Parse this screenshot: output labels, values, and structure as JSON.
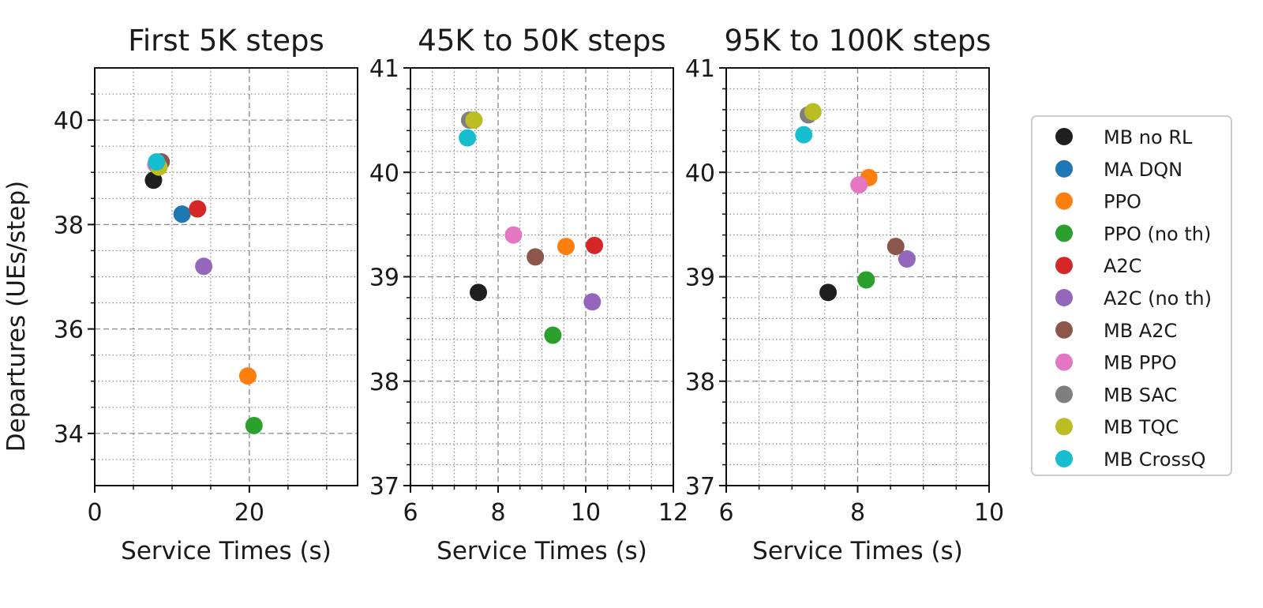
{
  "chart_data": [
    {
      "type": "scatter",
      "title": "First 5K steps",
      "xlabel": "Service Times (s)",
      "ylabel": "Departures (UEs/step)",
      "xlim": [
        0,
        34
      ],
      "ylim": [
        33,
        41
      ],
      "xticks": [
        0,
        20
      ],
      "yticks": [
        34,
        36,
        38,
        40
      ],
      "xminor": [
        5,
        10,
        15,
        25,
        30
      ],
      "yminor": [
        33.5,
        34.5,
        35,
        35.5,
        36.5,
        37,
        37.5,
        38.5,
        39,
        39.5,
        40.5
      ],
      "xtick_labels": [
        "0",
        "20"
      ],
      "ytick_labels": [
        "34",
        "36",
        "38",
        "40"
      ],
      "grid": true,
      "points": [
        {
          "series": "MB no RL",
          "x": 7.6,
          "y": 38.85
        },
        {
          "series": "MA DQN",
          "x": 11.3,
          "y": 38.2
        },
        {
          "series": "PPO",
          "x": 19.8,
          "y": 35.1
        },
        {
          "series": "PPO (no th)",
          "x": 20.6,
          "y": 34.15
        },
        {
          "series": "A2C",
          "x": 13.3,
          "y": 38.3
        },
        {
          "series": "A2C (no th)",
          "x": 14.1,
          "y": 37.2
        },
        {
          "series": "MB A2C",
          "x": 8.6,
          "y": 39.2
        },
        {
          "series": "MB PPO",
          "x": 7.9,
          "y": 39.15
        },
        {
          "series": "MB SAC",
          "x": 8.1,
          "y": 39.15
        },
        {
          "series": "MB TQC",
          "x": 8.3,
          "y": 39.1
        },
        {
          "series": "MB CrossQ",
          "x": 8.0,
          "y": 39.2
        }
      ]
    },
    {
      "type": "scatter",
      "title": "45K to 50K steps",
      "xlabel": "Service Times (s)",
      "ylabel": "",
      "xlim": [
        6,
        12
      ],
      "ylim": [
        37,
        41
      ],
      "xticks": [
        6,
        8,
        10,
        12
      ],
      "yticks": [
        37,
        38,
        39,
        40,
        41
      ],
      "xminor": [
        6.5,
        7,
        7.5,
        8.5,
        9,
        9.5,
        10.5,
        11,
        11.5
      ],
      "yminor": [
        37.2,
        37.4,
        37.6,
        37.8,
        38.2,
        38.4,
        38.6,
        38.8,
        39.2,
        39.4,
        39.6,
        39.8,
        40.2,
        40.4,
        40.6,
        40.8
      ],
      "xtick_labels": [
        "6",
        "8",
        "10",
        "12"
      ],
      "ytick_labels": [
        "37",
        "38",
        "39",
        "40",
        "41"
      ],
      "grid": true,
      "points": [
        {
          "series": "MB no RL",
          "x": 7.55,
          "y": 38.85
        },
        {
          "series": "PPO",
          "x": 9.55,
          "y": 39.29
        },
        {
          "series": "PPO (no th)",
          "x": 9.25,
          "y": 38.44
        },
        {
          "series": "A2C",
          "x": 10.2,
          "y": 39.3
        },
        {
          "series": "A2C (no th)",
          "x": 10.15,
          "y": 38.76
        },
        {
          "series": "MB A2C",
          "x": 8.85,
          "y": 39.19
        },
        {
          "series": "MB PPO",
          "x": 8.35,
          "y": 39.4
        },
        {
          "series": "MB SAC",
          "x": 7.35,
          "y": 40.5
        },
        {
          "series": "MB TQC",
          "x": 7.45,
          "y": 40.5
        },
        {
          "series": "MB CrossQ",
          "x": 7.3,
          "y": 40.33
        }
      ]
    },
    {
      "type": "scatter",
      "title": "95K to 100K steps",
      "xlabel": "Service Times (s)",
      "ylabel": "",
      "xlim": [
        6,
        10
      ],
      "ylim": [
        37,
        41
      ],
      "xticks": [
        6,
        8,
        10
      ],
      "yticks": [
        37,
        38,
        39,
        40,
        41
      ],
      "xminor": [
        6.5,
        7,
        7.5,
        8.5,
        9,
        9.5
      ],
      "yminor": [
        37.2,
        37.4,
        37.6,
        37.8,
        38.2,
        38.4,
        38.6,
        38.8,
        39.2,
        39.4,
        39.6,
        39.8,
        40.2,
        40.4,
        40.6,
        40.8
      ],
      "xtick_labels": [
        "6",
        "8",
        "10"
      ],
      "ytick_labels": [
        "37",
        "38",
        "39",
        "40",
        "41"
      ],
      "grid": true,
      "points": [
        {
          "series": "MB no RL",
          "x": 7.55,
          "y": 38.85
        },
        {
          "series": "PPO",
          "x": 8.17,
          "y": 39.95
        },
        {
          "series": "PPO (no th)",
          "x": 8.13,
          "y": 38.97
        },
        {
          "series": "A2C (no th)",
          "x": 8.75,
          "y": 39.17
        },
        {
          "series": "MB A2C",
          "x": 8.58,
          "y": 39.29
        },
        {
          "series": "MB PPO",
          "x": 8.02,
          "y": 39.88
        },
        {
          "series": "MB SAC",
          "x": 7.25,
          "y": 40.55
        },
        {
          "series": "MB TQC",
          "x": 7.32,
          "y": 40.58
        },
        {
          "series": "MB CrossQ",
          "x": 7.18,
          "y": 40.36
        }
      ]
    }
  ],
  "legend": {
    "placement": "right",
    "entries": [
      {
        "name": "MB no RL",
        "color": "#1f1f1f"
      },
      {
        "name": "MA DQN",
        "color": "#1f77b4"
      },
      {
        "name": "PPO",
        "color": "#ff7f0e"
      },
      {
        "name": "PPO (no th)",
        "color": "#2ca02c"
      },
      {
        "name": "A2C",
        "color": "#d62728"
      },
      {
        "name": "A2C (no th)",
        "color": "#9467bd"
      },
      {
        "name": "MB A2C",
        "color": "#8c564b"
      },
      {
        "name": "MB PPO",
        "color": "#e377c2"
      },
      {
        "name": "MB SAC",
        "color": "#7f7f7f"
      },
      {
        "name": "MB TQC",
        "color": "#bcbd22"
      },
      {
        "name": "MB CrossQ",
        "color": "#17becf"
      }
    ]
  }
}
